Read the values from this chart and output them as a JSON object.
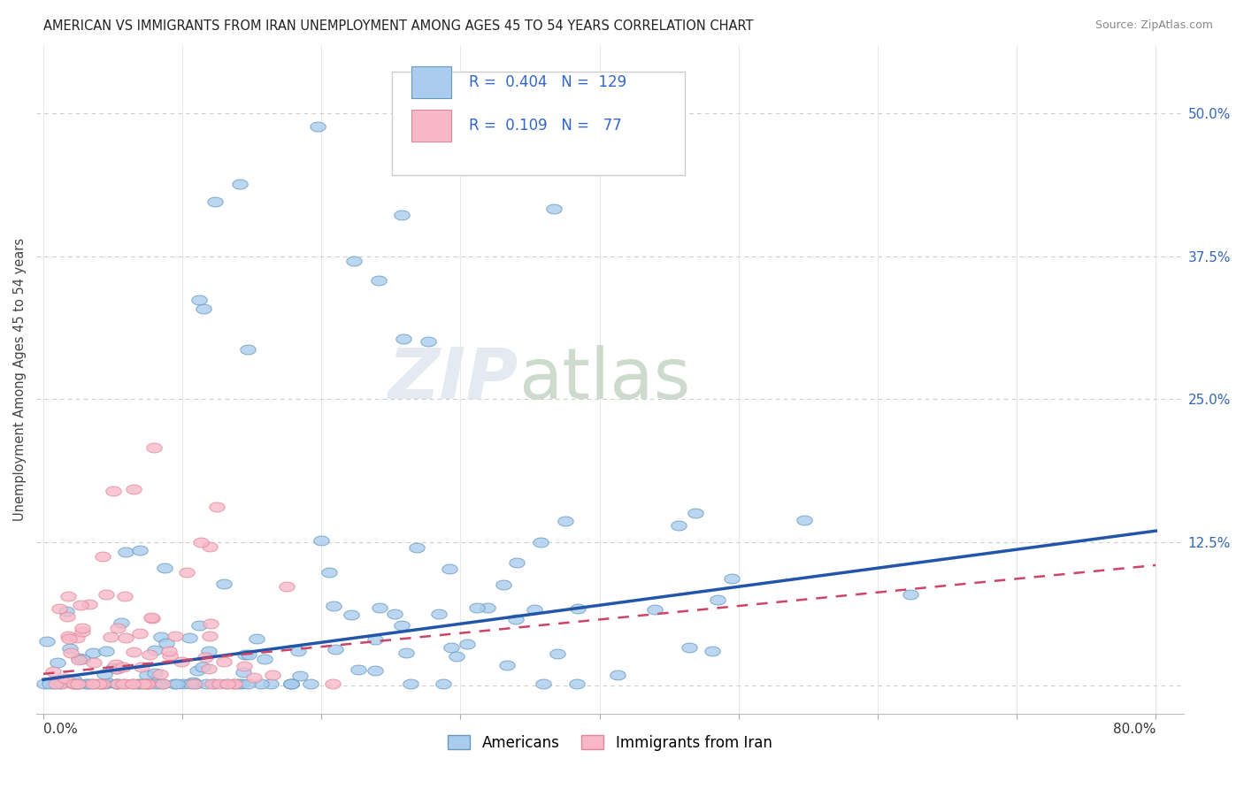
{
  "title": "AMERICAN VS IMMIGRANTS FROM IRAN UNEMPLOYMENT AMONG AGES 45 TO 54 YEARS CORRELATION CHART",
  "source": "Source: ZipAtlas.com",
  "ylabel": "Unemployment Among Ages 45 to 54 years",
  "ytick_labels": [
    "",
    "12.5%",
    "25.0%",
    "37.5%",
    "50.0%"
  ],
  "ytick_values": [
    0,
    0.125,
    0.25,
    0.375,
    0.5
  ],
  "xlim": [
    -0.005,
    0.82
  ],
  "ylim": [
    -0.025,
    0.56
  ],
  "americans_color": "#aaccee",
  "americans_edge": "#6699bb",
  "iran_color": "#f8b8c8",
  "iran_edge": "#dd8899",
  "trend_american_color": "#2255aa",
  "trend_iran_color": "#cc4466",
  "background_color": "#ffffff",
  "title_fontsize": 10.5,
  "source_fontsize": 9,
  "americans_R": 0.404,
  "americans_N": 129,
  "iran_R": 0.109,
  "iran_N": 77,
  "trend_am_start_y": 0.005,
  "trend_am_end_y": 0.135,
  "trend_ir_start_y": 0.01,
  "trend_ir_end_y": 0.105,
  "seed": 12345
}
